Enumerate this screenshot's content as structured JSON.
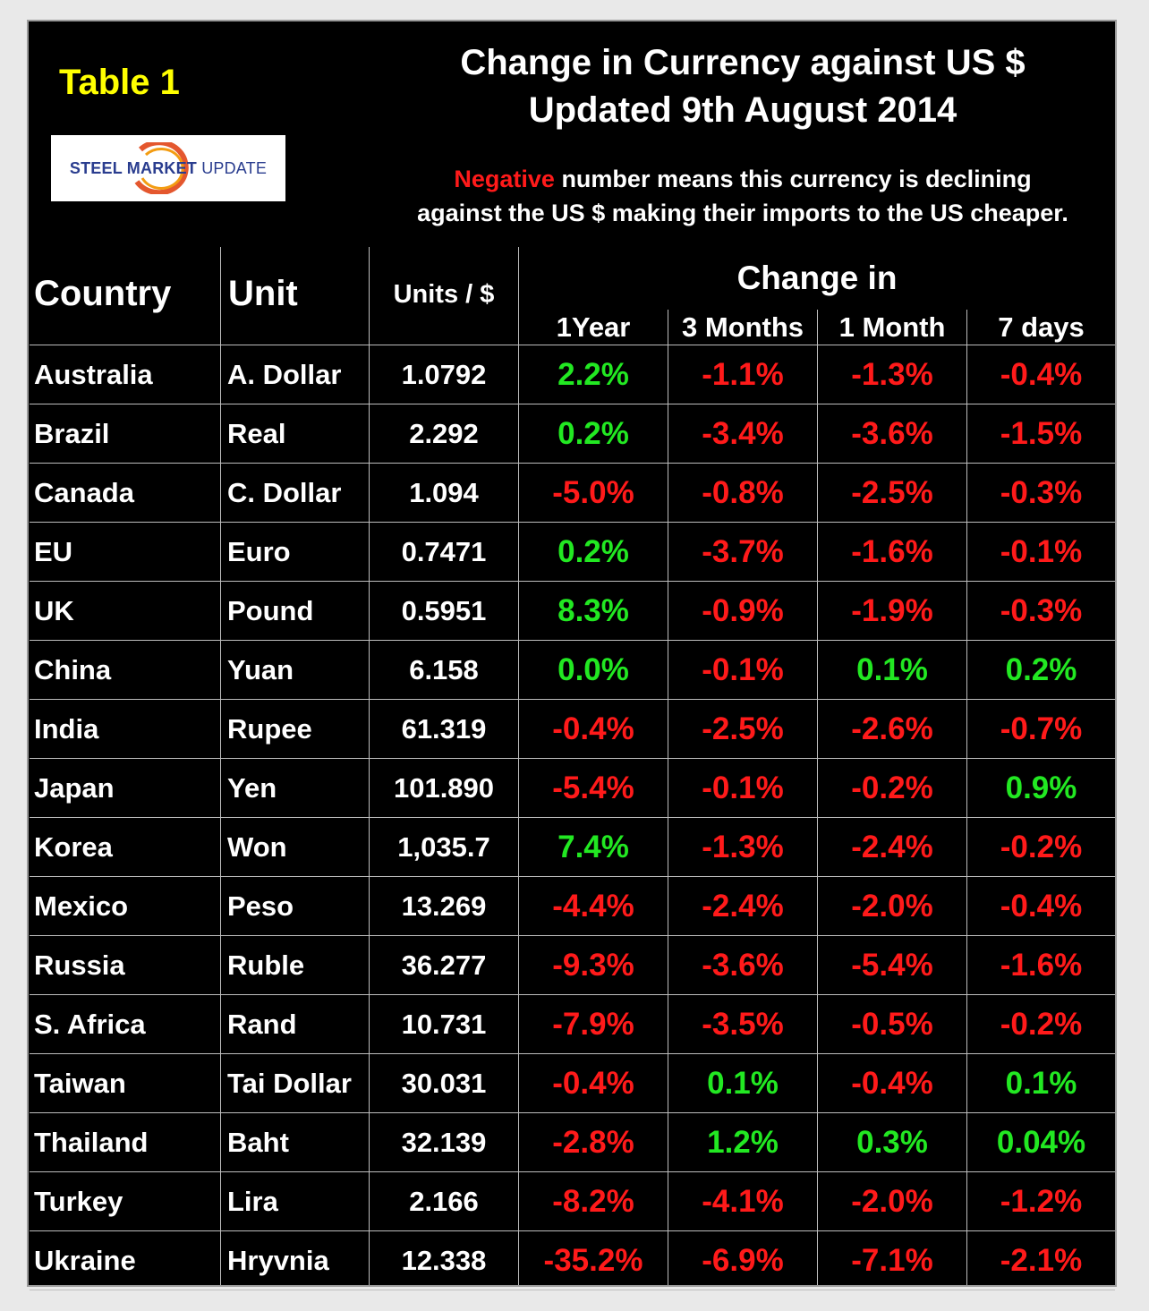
{
  "table_label": "Table 1",
  "logo": {
    "steel": "STEEL",
    "market": "MARKET",
    "update": "UPDATE"
  },
  "title": {
    "line1": "Change in Currency against US $",
    "line2": "Updated 9th August 2014"
  },
  "note": {
    "highlight": "Negative",
    "rest_line1": " number means this currency is declining",
    "line2": "against the US $ making their imports to the US cheaper."
  },
  "colors": {
    "positive": "#22e822",
    "negative": "#ff1a1a",
    "title_accent": "#ffff00",
    "background": "#000000"
  },
  "chart_data": {
    "type": "table",
    "title": "Change in Currency against US $",
    "subtitle": "Updated 9th August 2014",
    "headers": {
      "country": "Country",
      "unit": "Unit",
      "units_per_dollar": "Units / $",
      "change_group": "Change in",
      "changes": [
        "1Year",
        "3 Months",
        "1 Month",
        "7 days"
      ]
    },
    "rows": [
      {
        "country": "Australia",
        "unit": "A. Dollar",
        "units": "1.0792",
        "changes": [
          "2.2%",
          "-1.1%",
          "-1.3%",
          "-0.4%"
        ]
      },
      {
        "country": "Brazil",
        "unit": "Real",
        "units": "2.292",
        "changes": [
          "0.2%",
          "-3.4%",
          "-3.6%",
          "-1.5%"
        ]
      },
      {
        "country": "Canada",
        "unit": "C. Dollar",
        "units": "1.094",
        "changes": [
          "-5.0%",
          "-0.8%",
          "-2.5%",
          "-0.3%"
        ]
      },
      {
        "country": "EU",
        "unit": "Euro",
        "units": "0.7471",
        "changes": [
          "0.2%",
          "-3.7%",
          "-1.6%",
          "-0.1%"
        ]
      },
      {
        "country": "UK",
        "unit": "Pound",
        "units": "0.5951",
        "changes": [
          "8.3%",
          "-0.9%",
          "-1.9%",
          "-0.3%"
        ]
      },
      {
        "country": "China",
        "unit": "Yuan",
        "units": "6.158",
        "changes": [
          "0.0%",
          "-0.1%",
          "0.1%",
          "0.2%"
        ]
      },
      {
        "country": "India",
        "unit": "Rupee",
        "units": "61.319",
        "changes": [
          "-0.4%",
          "-2.5%",
          "-2.6%",
          "-0.7%"
        ]
      },
      {
        "country": "Japan",
        "unit": "Yen",
        "units": "101.890",
        "changes": [
          "-5.4%",
          "-0.1%",
          "-0.2%",
          "0.9%"
        ]
      },
      {
        "country": "Korea",
        "unit": "Won",
        "units": "1,035.7",
        "changes": [
          "7.4%",
          "-1.3%",
          "-2.4%",
          "-0.2%"
        ]
      },
      {
        "country": "Mexico",
        "unit": "Peso",
        "units": "13.269",
        "changes": [
          "-4.4%",
          "-2.4%",
          "-2.0%",
          "-0.4%"
        ]
      },
      {
        "country": "Russia",
        "unit": "Ruble",
        "units": "36.277",
        "changes": [
          "-9.3%",
          "-3.6%",
          "-5.4%",
          "-1.6%"
        ]
      },
      {
        "country": "S. Africa",
        "unit": "Rand",
        "units": "10.731",
        "changes": [
          "-7.9%",
          "-3.5%",
          "-0.5%",
          "-0.2%"
        ]
      },
      {
        "country": "Taiwan",
        "unit": "Tai Dollar",
        "units": "30.031",
        "changes": [
          "-0.4%",
          "0.1%",
          "-0.4%",
          "0.1%"
        ]
      },
      {
        "country": "Thailand",
        "unit": "Baht",
        "units": "32.139",
        "changes": [
          "-2.8%",
          "1.2%",
          "0.3%",
          "0.04%"
        ]
      },
      {
        "country": "Turkey",
        "unit": "Lira",
        "units": "2.166",
        "changes": [
          "-8.2%",
          "-4.1%",
          "-2.0%",
          "-1.2%"
        ]
      },
      {
        "country": "Ukraine",
        "unit": "Hryvnia",
        "units": "12.338",
        "changes": [
          "-35.2%",
          "-6.9%",
          "-7.1%",
          "-2.1%"
        ]
      }
    ]
  }
}
